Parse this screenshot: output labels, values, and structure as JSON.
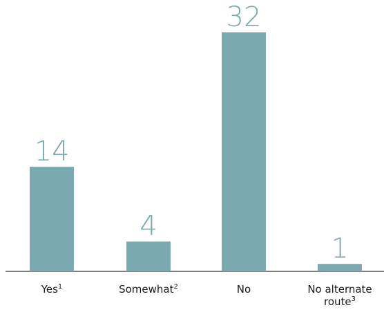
{
  "chart_data": {
    "type": "bar",
    "categories": [
      {
        "lines": [
          "Yes"
        ],
        "sup": "1"
      },
      {
        "lines": [
          "Somewhat"
        ],
        "sup": "2"
      },
      {
        "lines": [
          "No"
        ],
        "sup": ""
      },
      {
        "lines": [
          "No alternate",
          "route"
        ],
        "sup": "3"
      }
    ],
    "values": [
      14,
      4,
      32,
      1
    ],
    "ylim": [
      0,
      32
    ],
    "grid": false,
    "legend": "none",
    "bar_color": "#7aa9b0",
    "label_color": "#7aa9b0",
    "axis_color": "#333333"
  }
}
